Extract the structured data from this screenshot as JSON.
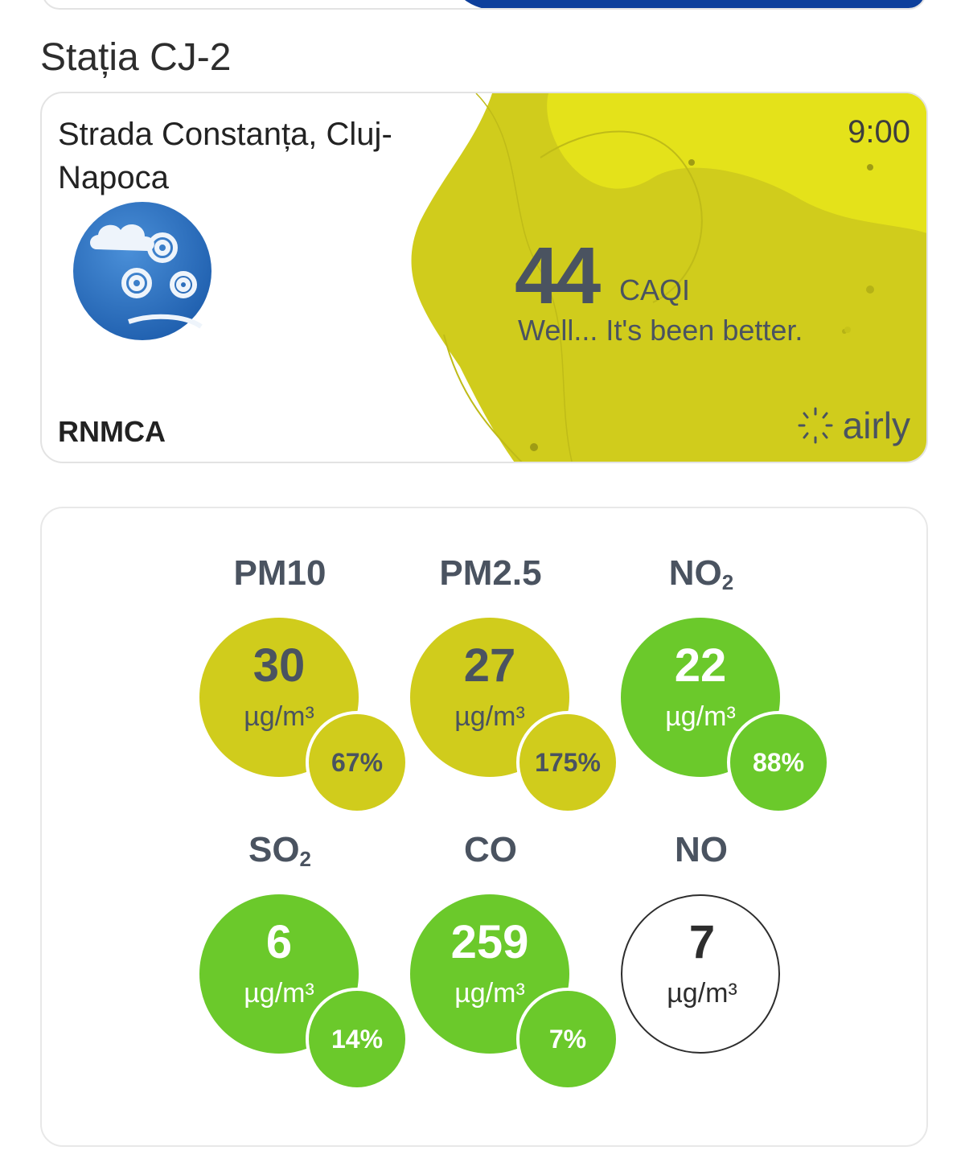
{
  "station": {
    "title": "Stația CJ-2",
    "address": "Strada Constanța, Cluj-Napoca",
    "time": "9:00",
    "provider": "RNMCA",
    "caqi": {
      "value": "44",
      "unit": "CAQI",
      "message": "Well... It's been better."
    },
    "brand": "airly",
    "colors": {
      "blob": "#d0cc1c",
      "blob_light": "#e4e21a"
    }
  },
  "pollutants": [
    {
      "name": "PM10",
      "sub": "",
      "value": "30",
      "unit": "µg/m³",
      "percent": "67%",
      "level": "yellow"
    },
    {
      "name": "PM2.5",
      "sub": "",
      "value": "27",
      "unit": "µg/m³",
      "percent": "175%",
      "level": "yellow"
    },
    {
      "name": "NO",
      "sub": "2",
      "value": "22",
      "unit": "µg/m³",
      "percent": "88%",
      "level": "green"
    },
    {
      "name": "SO",
      "sub": "2",
      "value": "6",
      "unit": "µg/m³",
      "percent": "14%",
      "level": "green"
    },
    {
      "name": "CO",
      "sub": "",
      "value": "259",
      "unit": "µg/m³",
      "percent": "7%",
      "level": "green"
    },
    {
      "name": "NO",
      "sub": "",
      "value": "7",
      "unit": "µg/m³",
      "percent": "",
      "level": "white"
    }
  ],
  "level_colors": {
    "yellow": "#d0cc1c",
    "green": "#6bc92b",
    "white": "#ffffff"
  }
}
